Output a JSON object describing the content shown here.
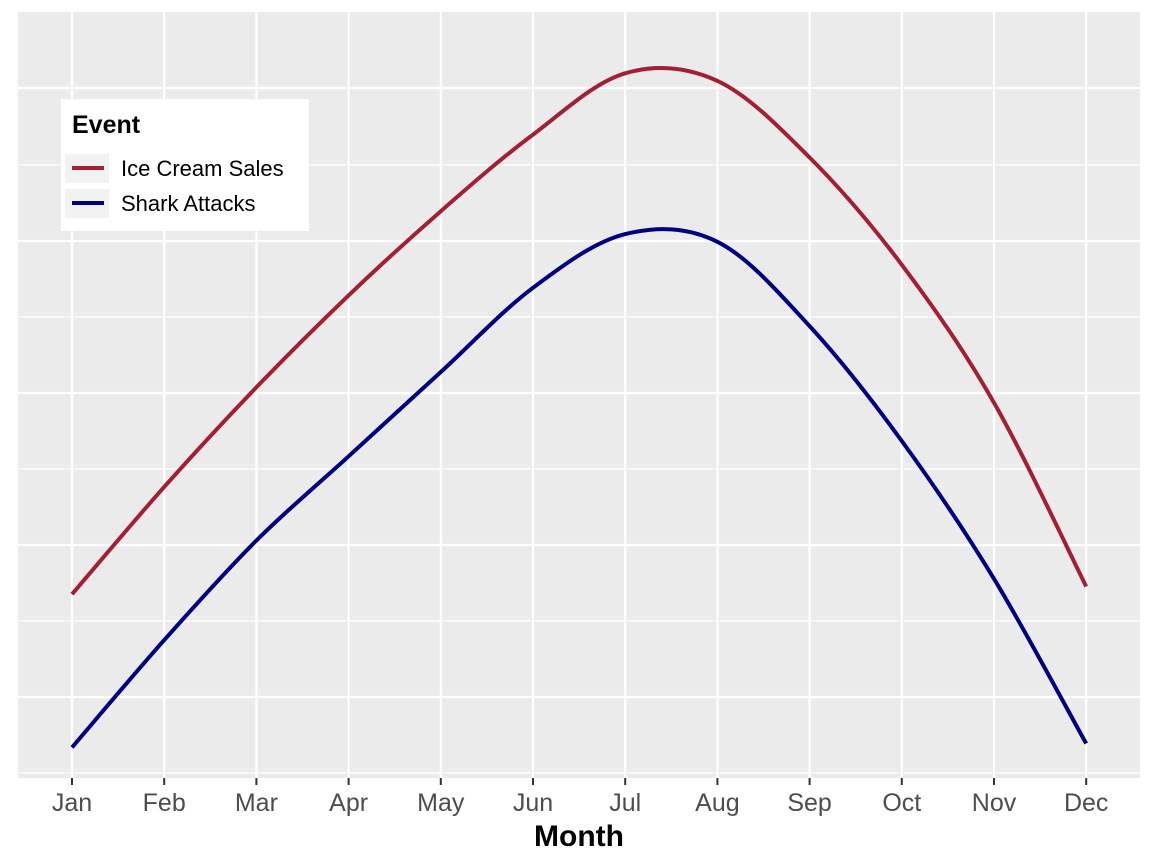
{
  "chart_data": {
    "type": "line",
    "xlabel": "Month",
    "ylabel": "",
    "categories": [
      "Jan",
      "Feb",
      "Mar",
      "Apr",
      "May",
      "Jun",
      "Jul",
      "Aug",
      "Sep",
      "Oct",
      "Nov",
      "Dec"
    ],
    "ylim": [
      0,
      100
    ],
    "y_ticks_labeled": false,
    "grid": true,
    "legend": {
      "title": "Event",
      "position": "top-left"
    },
    "series": [
      {
        "name": "Ice Cream Sales",
        "color": "#a31f34",
        "values": [
          24,
          38,
          51,
          63,
          74,
          84,
          92,
          91,
          81,
          67,
          49,
          25
        ]
      },
      {
        "name": "Shark Attacks",
        "color": "#000080",
        "values": [
          4,
          18,
          31,
          42,
          53,
          64,
          71,
          70,
          59,
          44,
          26,
          4.5
        ]
      }
    ]
  }
}
